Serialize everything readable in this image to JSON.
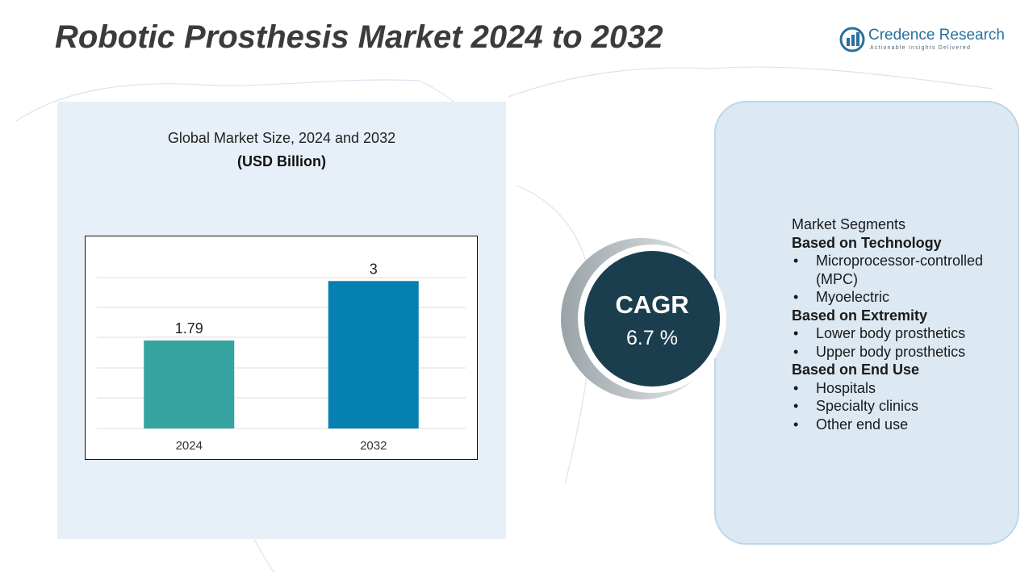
{
  "title": "Robotic Prosthesis Market 2024 to 2032",
  "logo": {
    "name": "Credence Research",
    "tagline": "Actionable Insights Delivered"
  },
  "chart_data": {
    "type": "bar",
    "title": "Global Market Size, 2024 and 2032",
    "subtitle": "(USD Billion)",
    "categories": [
      "2024",
      "2032"
    ],
    "values": [
      1.79,
      3
    ],
    "colors": [
      "#35a3a0",
      "#0680b0"
    ],
    "ylim": [
      0,
      3.3
    ]
  },
  "cagr": {
    "label": "CAGR",
    "value": "6.7 %"
  },
  "segments": {
    "heading": "Market Segments",
    "groups": [
      {
        "title": "Based on Technology",
        "items": [
          "Microprocessor-controlled (MPC)",
          "Myoelectric"
        ]
      },
      {
        "title": "Based on Extremity",
        "items": [
          "Lower body prosthetics",
          "Upper body prosthetics"
        ]
      },
      {
        "title": "Based on End Use",
        "items": [
          "Hospitals",
          "Specialty clinics",
          "Other end use"
        ]
      }
    ]
  }
}
